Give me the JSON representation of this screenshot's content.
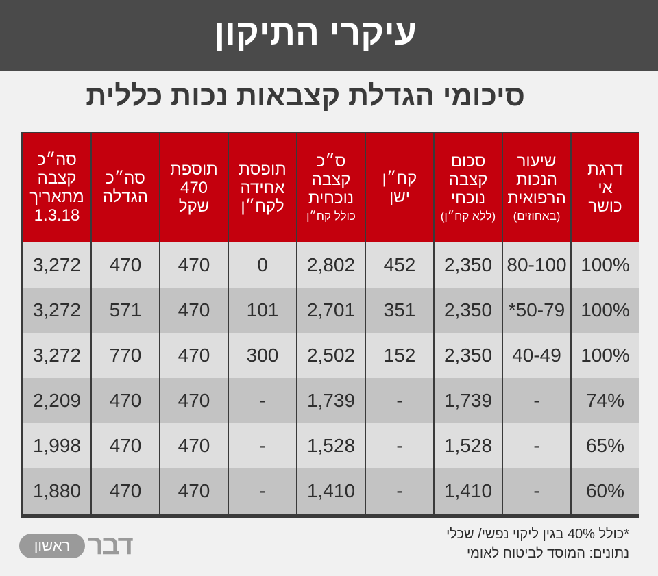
{
  "header": {
    "title": "עיקרי התיקון",
    "subtitle": "סיכומי הגדלת קצבאות נכות כללית"
  },
  "table": {
    "columns": [
      {
        "lines": [
          "סה״כ",
          "קצבה",
          "מתאריך",
          "1.3.18"
        ],
        "note": ""
      },
      {
        "lines": [
          "סה״כ",
          "הגדלה"
        ],
        "note": ""
      },
      {
        "lines": [
          "תוספת",
          "470 שקל"
        ],
        "note": ""
      },
      {
        "lines": [
          "תופסת",
          "אחידה",
          "לקח״ן"
        ],
        "note": ""
      },
      {
        "lines": [
          "ס״כ",
          "קצבה",
          "נוכחית"
        ],
        "note": "כולל קח״ן"
      },
      {
        "lines": [
          "קח״ן",
          "ישן"
        ],
        "note": ""
      },
      {
        "lines": [
          "סכום",
          "קצבה",
          "נוכחי"
        ],
        "note": "(ללא קח״ן)"
      },
      {
        "lines": [
          "שיעור",
          "הנכות",
          "הרפואית"
        ],
        "note": "(באחוזים)"
      },
      {
        "lines": [
          "דרגת",
          "אי",
          "כושר"
        ],
        "note": ""
      }
    ],
    "rows": [
      [
        "3,272",
        "470",
        "470",
        "0",
        "2,802",
        "452",
        "2,350",
        "80-100",
        "100%"
      ],
      [
        "3,272",
        "571",
        "470",
        "101",
        "2,701",
        "351",
        "2,350",
        "*50-79",
        "100%"
      ],
      [
        "3,272",
        "770",
        "470",
        "300",
        "2,502",
        "152",
        "2,350",
        "40-49",
        "100%"
      ],
      [
        "2,209",
        "470",
        "470",
        "-",
        "1,739",
        "-",
        "1,739",
        "-",
        "74%"
      ],
      [
        "1,998",
        "470",
        "470",
        "-",
        "1,528",
        "-",
        "1,528",
        "-",
        "65%"
      ],
      [
        "1,880",
        "470",
        "470",
        "-",
        "1,410",
        "-",
        "1,410",
        "-",
        "60%"
      ]
    ]
  },
  "footer": {
    "note": "*כולל 40% בגין ליקוי נפשי/ שכלי",
    "source": "נתונים: המוסד לביטוח לאומי"
  },
  "logo": {
    "word": "דבר",
    "pill": "ראשון"
  },
  "colors": {
    "header_bg": "#4a4a4a",
    "table_header_bg": "#c4000d",
    "row_light": "#dedede",
    "row_dark": "#c3c3c3"
  }
}
